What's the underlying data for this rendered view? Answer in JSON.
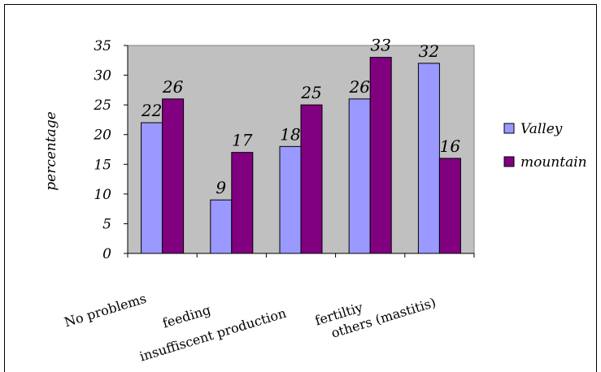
{
  "chart_data": {
    "type": "bar",
    "title": "",
    "xlabel": "",
    "ylabel": "percentage",
    "ylim": [
      0,
      35
    ],
    "yticks": [
      0,
      5,
      10,
      15,
      20,
      25,
      30,
      35
    ],
    "categories": [
      "No problems",
      "feeding",
      "insuffiscent production",
      "fertiltiy",
      "others (mastitis)"
    ],
    "series": [
      {
        "name": "Valley",
        "values": [
          22,
          9,
          18,
          26,
          32
        ],
        "color": "#9999ff"
      },
      {
        "name": "mountain",
        "values": [
          26,
          17,
          25,
          33,
          16
        ],
        "color": "#800080"
      }
    ],
    "legend": "right",
    "plot_background": "#c0c0c0",
    "grid": false,
    "data_labels": true
  }
}
